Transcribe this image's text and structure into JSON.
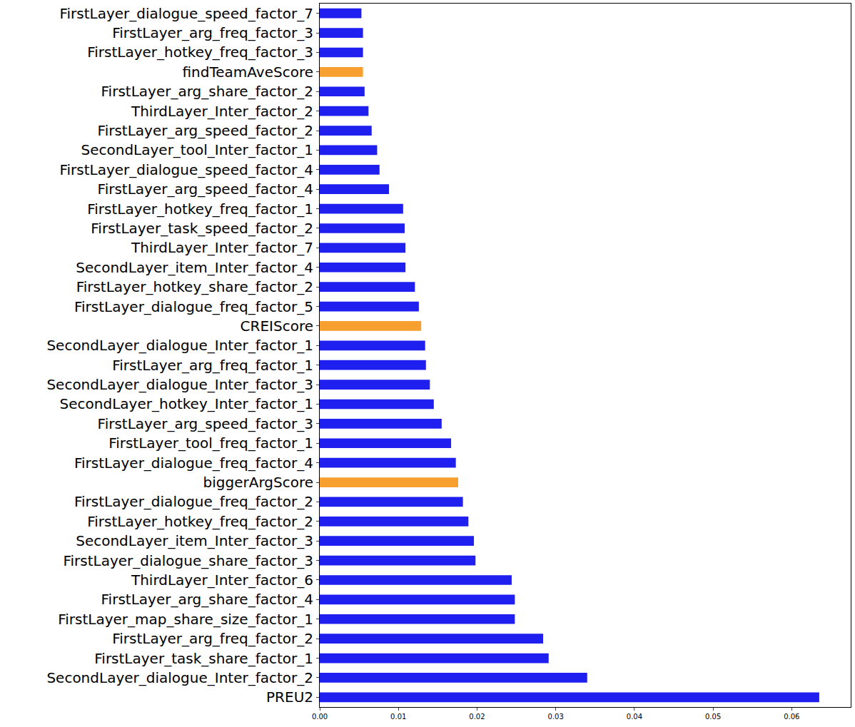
{
  "chart_data": {
    "type": "bar",
    "orientation": "horizontal",
    "categories": [
      "PREU2",
      "SecondLayer_dialogue_Inter_factor_2",
      "FirstLayer_task_share_factor_1",
      "FirstLayer_arg_freq_factor_2",
      "FirstLayer_map_share_size_factor_1",
      "FirstLayer_arg_share_factor_4",
      "ThirdLayer_Inter_factor_6",
      "FirstLayer_dialogue_share_factor_3",
      "SecondLayer_item_Inter_factor_3",
      "FirstLayer_hotkey_freq_factor_2",
      "FirstLayer_dialogue_freq_factor_2",
      "biggerArgScore",
      "FirstLayer_dialogue_freq_factor_4",
      "FirstLayer_tool_freq_factor_1",
      "FirstLayer_arg_speed_factor_3",
      "SecondLayer_hotkey_Inter_factor_1",
      "SecondLayer_dialogue_Inter_factor_3",
      "FirstLayer_arg_freq_factor_1",
      "SecondLayer_dialogue_Inter_factor_1",
      "CREIScore",
      "FirstLayer_dialogue_freq_factor_5",
      "FirstLayer_hotkey_share_factor_2",
      "SecondLayer_item_Inter_factor_4",
      "ThirdLayer_Inter_factor_7",
      "FirstLayer_task_speed_factor_2",
      "FirstLayer_hotkey_freq_factor_1",
      "FirstLayer_arg_speed_factor_4",
      "FirstLayer_dialogue_speed_factor_4",
      "SecondLayer_tool_Inter_factor_1",
      "FirstLayer_arg_speed_factor_2",
      "ThirdLayer_Inter_factor_2",
      "FirstLayer_arg_share_factor_2",
      "findTeamAveScore",
      "FirstLayer_hotkey_freq_factor_3",
      "FirstLayer_arg_freq_factor_3",
      "FirstLayer_dialogue_speed_factor_7"
    ],
    "values": [
      0.0635,
      0.034,
      0.0291,
      0.0284,
      0.0248,
      0.0248,
      0.0244,
      0.0198,
      0.0196,
      0.0189,
      0.0182,
      0.0176,
      0.0173,
      0.0167,
      0.0155,
      0.0145,
      0.014,
      0.0135,
      0.0134,
      0.0129,
      0.0126,
      0.0121,
      0.0109,
      0.0109,
      0.0108,
      0.0106,
      0.0088,
      0.0076,
      0.0073,
      0.0066,
      0.0062,
      0.0057,
      0.0055,
      0.0055,
      0.0055,
      0.0053
    ],
    "colors": [
      "#1f1fef",
      "#1f1fef",
      "#1f1fef",
      "#1f1fef",
      "#1f1fef",
      "#1f1fef",
      "#1f1fef",
      "#1f1fef",
      "#1f1fef",
      "#1f1fef",
      "#1f1fef",
      "#f7a030",
      "#1f1fef",
      "#1f1fef",
      "#1f1fef",
      "#1f1fef",
      "#1f1fef",
      "#1f1fef",
      "#1f1fef",
      "#f7a030",
      "#1f1fef",
      "#1f1fef",
      "#1f1fef",
      "#1f1fef",
      "#1f1fef",
      "#1f1fef",
      "#1f1fef",
      "#1f1fef",
      "#1f1fef",
      "#1f1fef",
      "#1f1fef",
      "#1f1fef",
      "#f7a030",
      "#1f1fef",
      "#1f1fef",
      "#1f1fef"
    ],
    "xlim": [
      0,
      0.0675
    ],
    "xticks": [
      {
        "value": 0,
        "label": "0.00"
      },
      {
        "value": 0.01,
        "label": "0.01"
      },
      {
        "value": 0.02,
        "label": "0.02"
      },
      {
        "value": 0.03,
        "label": "0.03"
      },
      {
        "value": 0.04,
        "label": "0.04"
      },
      {
        "value": 0.05,
        "label": "0.05"
      },
      {
        "value": 0.06,
        "label": "0.06"
      }
    ],
    "grid": false
  }
}
